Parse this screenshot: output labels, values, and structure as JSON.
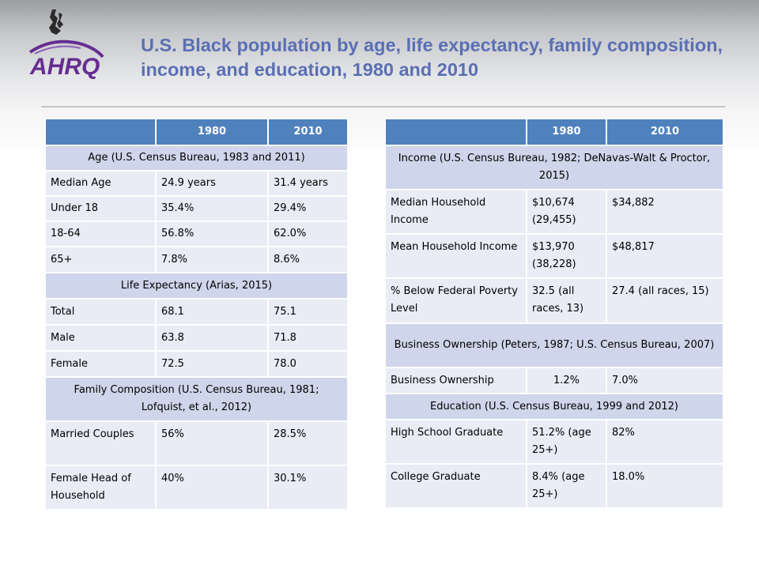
{
  "header": {
    "title": "U.S. Black population by age, life expectancy, family composition, income, and education, 1980 and 2010",
    "logo_text": "AHRQ"
  },
  "left_table": {
    "columns": [
      "",
      "1980",
      "2010"
    ],
    "age_section": "Age (U.S. Census Bureau, 1983 and 2011)",
    "age_rows": [
      [
        "Median Age",
        "24.9 years",
        "31.4 years"
      ],
      [
        "Under 18",
        "35.4%",
        "29.4%"
      ],
      [
        "18-64",
        "56.8%",
        "62.0%"
      ],
      [
        "65+",
        "7.8%",
        "8.6%"
      ]
    ],
    "life_section": "Life Expectancy (Arias, 2015)",
    "life_rows": [
      [
        "Total",
        "68.1",
        "75.1"
      ],
      [
        "Male",
        "63.8",
        "71.8"
      ],
      [
        "Female",
        "72.5",
        "78.0"
      ]
    ],
    "family_section": "Family Composition (U.S. Census Bureau, 1981; Lofquist, et al., 2012)",
    "family_rows": [
      [
        "Married Couples",
        "56%",
        "28.5%"
      ],
      [
        "Female Head of Household",
        "40%",
        "30.1%"
      ]
    ]
  },
  "right_table": {
    "columns": [
      "",
      "1980",
      "2010"
    ],
    "income_section": "Income (U.S. Census Bureau, 1982; DeNavas-Walt & Proctor, 2015)",
    "income_rows": [
      [
        "Median Household Income",
        "$10,674 (29,455)",
        "$34,882"
      ],
      [
        "Mean Household Income",
        "$13,970 (38,228)",
        "$48,817"
      ],
      [
        "% Below Federal Poverty Level",
        "32.5 (all races, 13)",
        "27.4 (all races, 15)"
      ]
    ],
    "business_section": "Business Ownership (Peters, 1987; U.S. Census Bureau, 2007)",
    "business_rows": [
      [
        "Business Ownership",
        "1.2%",
        "7.0%"
      ]
    ],
    "education_section": "Education (U.S. Census Bureau, 1999 and 2012)",
    "education_rows": [
      [
        "High School Graduate",
        "51.2% (age 25+)",
        "82%"
      ],
      [
        "College Graduate",
        "8.4% (age 25+)",
        "18.0%"
      ]
    ]
  }
}
